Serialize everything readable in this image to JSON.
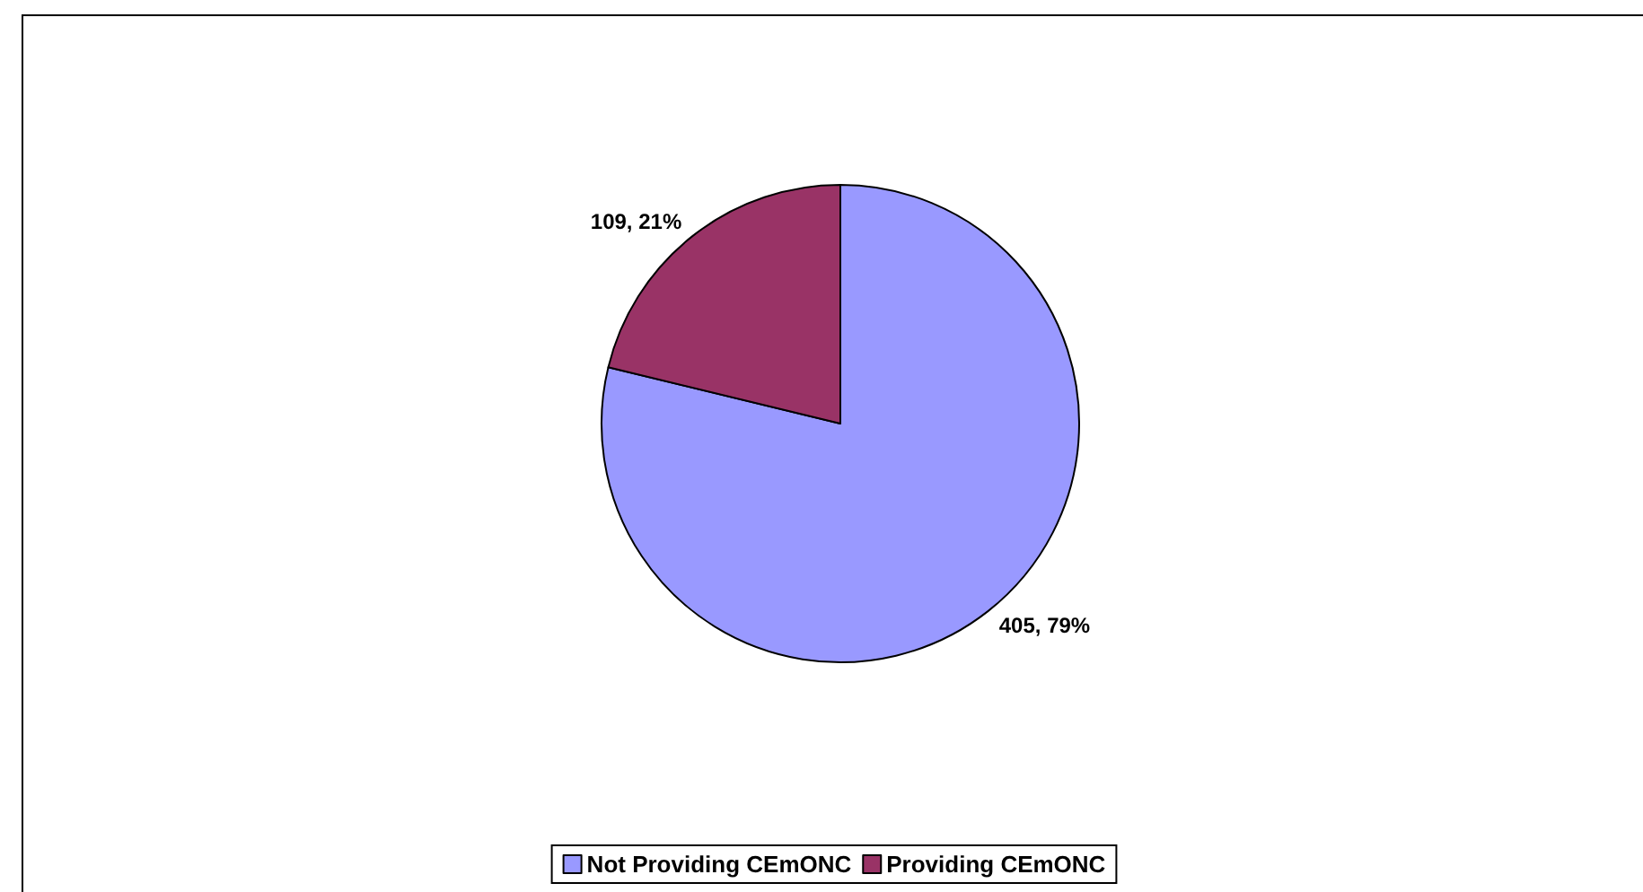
{
  "chart_data": {
    "type": "pie",
    "categories": [
      "Not Providing CEmONC",
      "Providing CEmONC"
    ],
    "values": [
      405,
      109
    ],
    "colors": [
      "#9999ff",
      "#993366"
    ],
    "value_labels": [
      "405, 79%",
      "109, 21%"
    ],
    "legend": "bottom"
  }
}
